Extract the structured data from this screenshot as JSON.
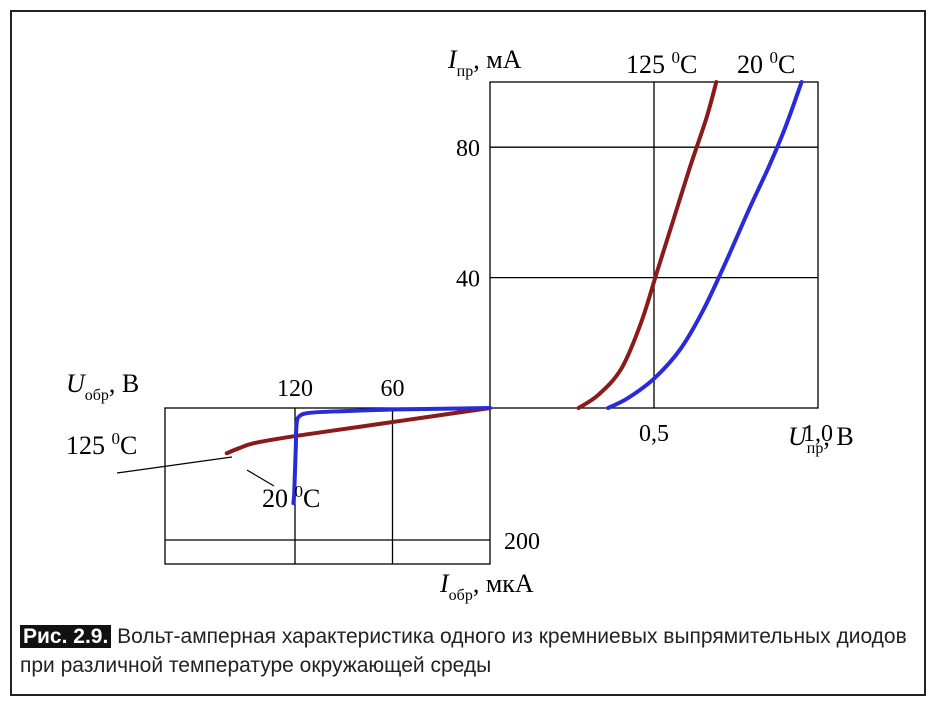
{
  "chart_data": {
    "type": "line",
    "forward": {
      "xlim": [
        0,
        1.0
      ],
      "ylim": [
        0,
        100
      ],
      "x_ticks": [
        0.5,
        1.0
      ],
      "x_tick_labels": [
        "0,5",
        "1,0"
      ],
      "y_ticks": [
        40,
        80
      ],
      "y_tick_labels": [
        "40",
        "80"
      ],
      "grid": true,
      "series": [
        {
          "name": "125 °C",
          "color": "#8b1a1a",
          "points": [
            [
              0.27,
              0
            ],
            [
              0.33,
              4
            ],
            [
              0.4,
              12
            ],
            [
              0.46,
              26
            ],
            [
              0.51,
              42
            ],
            [
              0.56,
              58
            ],
            [
              0.61,
              74
            ],
            [
              0.66,
              89
            ],
            [
              0.69,
              100
            ]
          ]
        },
        {
          "name": "20 °C",
          "color": "#2a2ad8",
          "points": [
            [
              0.36,
              0
            ],
            [
              0.42,
              3
            ],
            [
              0.5,
              9
            ],
            [
              0.58,
              18
            ],
            [
              0.65,
              30
            ],
            [
              0.72,
              45
            ],
            [
              0.79,
              61
            ],
            [
              0.85,
              74
            ],
            [
              0.9,
              86
            ],
            [
              0.95,
              100
            ]
          ]
        }
      ]
    },
    "reverse": {
      "xlim": [
        0,
        200
      ],
      "ylim": [
        0,
        200
      ],
      "x_ticks": [
        60,
        120
      ],
      "x_tick_labels": [
        "60",
        "120"
      ],
      "y_ticks": [
        200
      ],
      "y_tick_labels": [
        "200"
      ],
      "grid": true,
      "series": [
        {
          "name": "125 °C",
          "color": "#8b1a1a",
          "points": [
            [
              0,
              0
            ],
            [
              40,
              12
            ],
            [
              80,
              24
            ],
            [
              120,
              36
            ],
            [
              145,
              45
            ],
            [
              155,
              52
            ],
            [
              162,
              58
            ]
          ]
        },
        {
          "name": "20 °C",
          "color": "#2a2ad8",
          "points": [
            [
              0,
              0
            ],
            [
              30,
              1
            ],
            [
              60,
              2
            ],
            [
              90,
              4
            ],
            [
              110,
              6
            ],
            [
              117,
              10
            ],
            [
              119,
              20
            ],
            [
              119.5,
              50
            ],
            [
              120,
              80
            ],
            [
              120.5,
              110
            ],
            [
              121,
              122
            ]
          ]
        }
      ]
    }
  },
  "labels": {
    "y_forward_symbol": "I",
    "y_forward_sub": "пр",
    "y_forward_unit": ", мА",
    "x_forward_symbol": "U",
    "x_forward_sub": "пр",
    "x_forward_unit": ", В",
    "x_reverse_symbol": "U",
    "x_reverse_sub": "обр",
    "x_reverse_unit": ", В",
    "y_reverse_symbol": "I",
    "y_reverse_sub": "обр",
    "y_reverse_unit": ", мкА",
    "fwd_hot_num": "125 ",
    "fwd_cold_num": "20 ",
    "rev_hot_num": "125 ",
    "rev_cold_num": "20 ",
    "deg_sup": "0",
    "deg_unit": "C"
  },
  "caption": {
    "figure_label": "Рис. 2.9.",
    "text": " Вольт-амперная характеристика одного из кремниевых выпрямительных диодов при различной температуре окружающей среды"
  }
}
